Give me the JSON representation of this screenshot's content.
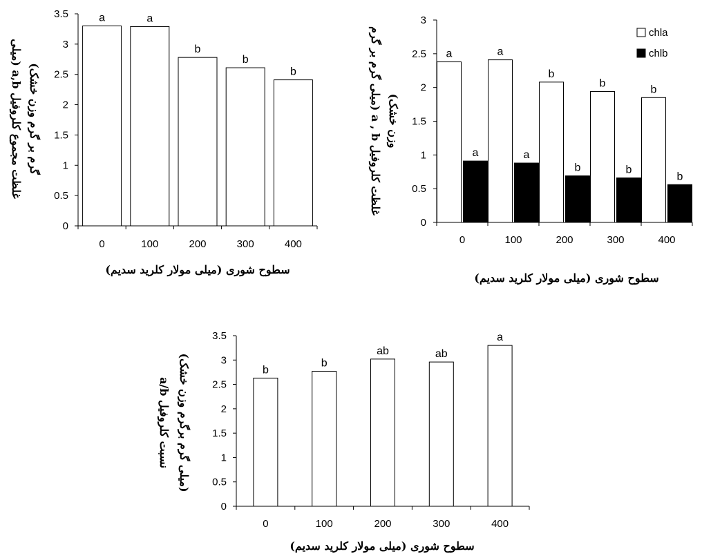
{
  "chart_data": [
    {
      "type": "bar",
      "categories": [
        "0",
        "100",
        "200",
        "300",
        "400"
      ],
      "series": [
        {
          "values": [
            3.3,
            3.29,
            2.78,
            2.61,
            2.41
          ],
          "labels": [
            "a",
            "a",
            "b",
            "b",
            "b"
          ],
          "fill": "#ffffff"
        }
      ],
      "ylim": [
        0,
        3.5
      ],
      "yticks": [
        "0",
        "0.5",
        "1",
        "1.5",
        "2",
        "2.5",
        "3",
        "3.5"
      ],
      "xlabel": "سطوح شوری (میلی مولار کلرید سدیم)",
      "ylabel": [
        "غلظت مجموع کلروفیل a,b (میلی",
        "گرم بر گرم وزن خشک)"
      ],
      "legend": null
    },
    {
      "type": "bar",
      "categories": [
        "0",
        "100",
        "200",
        "300",
        "400"
      ],
      "series": [
        {
          "name": "chla",
          "values": [
            2.38,
            2.41,
            2.08,
            1.94,
            1.85
          ],
          "labels": [
            "a",
            "a",
            "b",
            "b",
            "b"
          ],
          "fill": "#ffffff"
        },
        {
          "name": "chlb",
          "values": [
            0.91,
            0.88,
            0.69,
            0.66,
            0.56
          ],
          "labels": [
            "a",
            "a",
            "b",
            "b",
            "b"
          ],
          "fill": "#000000"
        }
      ],
      "ylim": [
        0,
        3
      ],
      "yticks": [
        "0",
        "0.5",
        "1",
        "1.5",
        "2",
        "2.5",
        "3"
      ],
      "xlabel": "سطوح شوری (میلی مولار کلرید سدیم)",
      "ylabel": [
        "غلظت کلروفیل a , b (میلی گرم بر گرم",
        "وزن خشک)"
      ],
      "legend": "top-right"
    },
    {
      "type": "bar",
      "categories": [
        "0",
        "100",
        "200",
        "300",
        "400"
      ],
      "series": [
        {
          "values": [
            2.63,
            2.77,
            3.02,
            2.96,
            3.3
          ],
          "labels": [
            "b",
            "b",
            "ab",
            "ab",
            "a"
          ],
          "fill": "#ffffff"
        }
      ],
      "ylim": [
        0,
        3.5
      ],
      "yticks": [
        "0",
        "0.5",
        "1",
        "1.5",
        "2",
        "2.5",
        "3",
        "3.5"
      ],
      "xlabel": "سطوح شوری (میلی مولار کلرید سدیم)",
      "ylabel": [
        "نسبت کلروفیل a/b",
        "(میلی گرم برگرم وزن خشک)"
      ],
      "legend": null
    }
  ]
}
